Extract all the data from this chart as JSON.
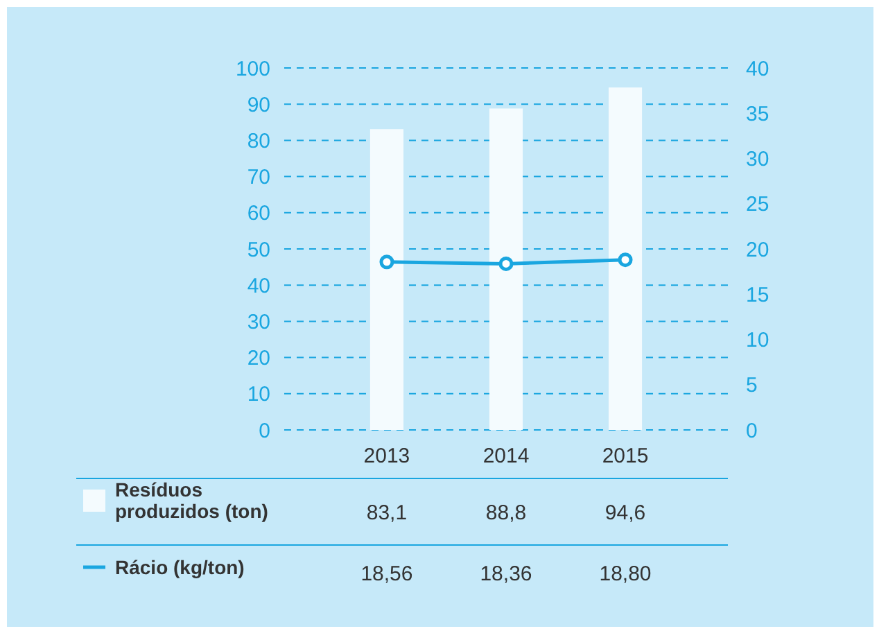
{
  "chart_data": {
    "type": "bar",
    "categories": [
      "2013",
      "2014",
      "2015"
    ],
    "series": [
      {
        "name": "Resíduos produzidos (ton)",
        "color": "#f4fbfe",
        "values": [
          83.1,
          88.8,
          94.6
        ],
        "value_labels": [
          "83,1",
          "88,8",
          "94,6"
        ]
      },
      {
        "name": "Rácio (kg/ton)",
        "type": "line",
        "axis": "y2",
        "color": "#1aa6e0",
        "values": [
          18.56,
          18.36,
          18.8
        ],
        "value_labels": [
          "18,56",
          "18,36",
          "18,80"
        ],
        "marker": "circle"
      }
    ],
    "ylim": [
      0,
      100
    ],
    "yticks": [
      0,
      10,
      20,
      30,
      40,
      50,
      60,
      70,
      80,
      90,
      100
    ],
    "y2lim": [
      0,
      40
    ],
    "y2ticks": [
      0,
      5,
      10,
      15,
      20,
      25,
      30,
      35,
      40
    ],
    "grid": "y",
    "legend": "bottom",
    "line_style": "solid"
  }
}
